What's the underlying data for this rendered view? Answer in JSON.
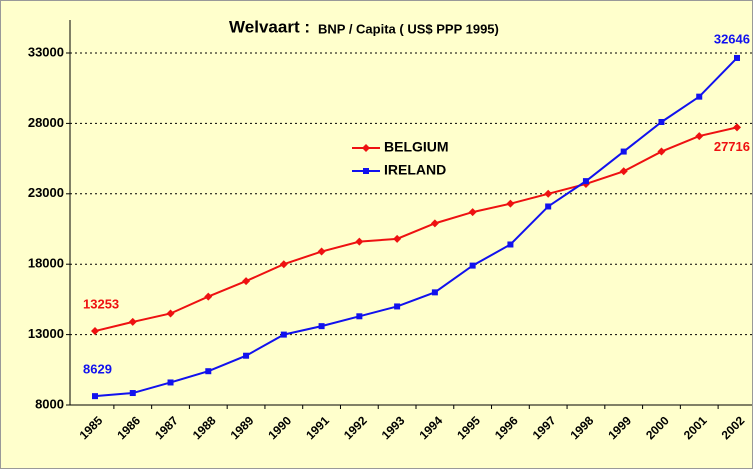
{
  "chart_data": {
    "type": "line",
    "title": "Welvaart  :",
    "subtitle": "BNP / Capita ( US$  PPP 1995)",
    "categories": [
      "1985",
      "1986",
      "1987",
      "1988",
      "1989",
      "1990",
      "1991",
      "1992",
      "1993",
      "1994",
      "1995",
      "1996",
      "1997",
      "1998",
      "1999",
      "2000",
      "2001",
      "2002"
    ],
    "series": [
      {
        "name": "BELGIUM",
        "color": "#ee1111",
        "marker": "diamond",
        "values": [
          13253,
          13900,
          14500,
          15700,
          16800,
          18000,
          18900,
          19600,
          19800,
          20900,
          21700,
          22300,
          23000,
          23700,
          24600,
          26000,
          27100,
          27716
        ]
      },
      {
        "name": "IRELAND",
        "color": "#1111ee",
        "marker": "square",
        "values": [
          8629,
          8850,
          9600,
          10400,
          11500,
          13000,
          13600,
          14300,
          15000,
          16000,
          17900,
          19400,
          22100,
          23900,
          26000,
          28100,
          29900,
          32646
        ]
      }
    ],
    "ylim": [
      8000,
      33000
    ],
    "yticks": [
      8000,
      13000,
      18000,
      23000,
      28000,
      33000
    ],
    "grid": true
  }
}
